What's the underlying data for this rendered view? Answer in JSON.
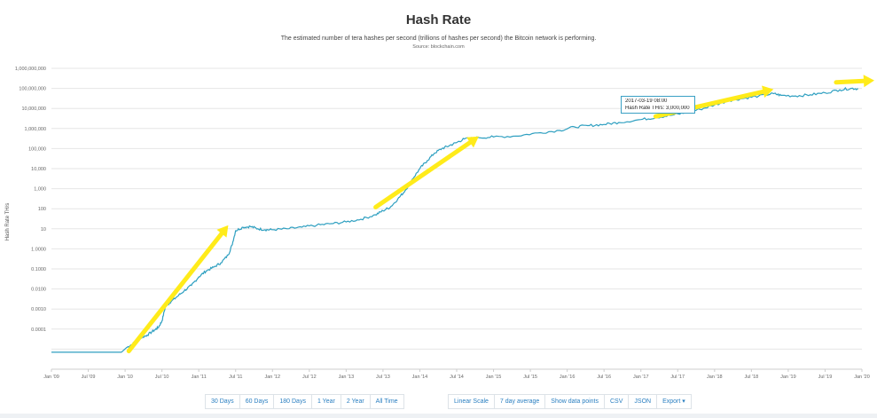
{
  "header": {
    "title": "Hash Rate",
    "subtitle": "The estimated number of tera hashes per second (trillions of hashes per second) the Bitcoin network is performing.",
    "source": "Source: blockchain.com"
  },
  "chart_data": {
    "type": "line",
    "title": "Hash Rate",
    "ylabel": "Hash Rate TH/s",
    "xlabel": "",
    "yscale": "log",
    "ylim": [
      1e-06,
      1000000000
    ],
    "y_tick_labels": [
      "0.0001",
      "0.0010",
      "0.0100",
      "0.1000",
      "1.0000",
      "10",
      "100",
      "1,000",
      "10,000",
      "100,000",
      "1,000,000",
      "10,000,000",
      "100,000,000",
      "1,000,000,000"
    ],
    "y_tick_values": [
      1e-05,
      0.0001,
      0.001,
      0.01,
      0.1,
      1,
      10,
      100,
      1000,
      10000,
      100000,
      1000000,
      10000000,
      100000000,
      1000000000
    ],
    "y_tick_labels_full": [
      "",
      "0.0001",
      "0.0010",
      "0.0100",
      "0.1000",
      "1.0000",
      "10",
      "100",
      "1,000",
      "10,000",
      "100,000",
      "1,000,000",
      "10,000,000",
      "100,000,000",
      "1,000,000,000"
    ],
    "x_tick_labels": [
      "Jan '09",
      "Jul '09",
      "Jan '10",
      "Jul '10",
      "Jan '11",
      "Jul '11",
      "Jan '12",
      "Jul '12",
      "Jan '13",
      "Jul '13",
      "Jan '14",
      "Jul '14",
      "Jan '15",
      "Jul '15",
      "Jan '16",
      "Jul '16",
      "Jan '17",
      "Jul '17",
      "Jan '18",
      "Jul '18",
      "Jan '19",
      "Jul '19",
      "Jan '20"
    ],
    "xlim": [
      2009.0,
      2020.0
    ],
    "grid": true,
    "series_color": "#2e9fc0",
    "series": [
      {
        "x": [
          2009.0,
          2009.5,
          2009.95,
          2010.02,
          2010.1,
          2010.2,
          2010.3,
          2010.4,
          2010.45,
          2010.5,
          2010.55,
          2010.6,
          2010.7,
          2010.8,
          2010.9,
          2011.0,
          2011.1,
          2011.2,
          2011.3,
          2011.4,
          2011.45,
          2011.5,
          2011.6,
          2011.7,
          2011.8,
          2011.9,
          2012.0,
          2012.2,
          2012.4,
          2012.6,
          2012.8,
          2013.0,
          2013.2,
          2013.4,
          2013.5,
          2013.6,
          2013.7,
          2013.8,
          2013.9,
          2014.0,
          2014.1,
          2014.2,
          2014.3,
          2014.4,
          2014.5,
          2014.6,
          2014.8,
          2015.0,
          2015.3,
          2015.6,
          2015.9,
          2016.1,
          2016.3,
          2016.5,
          2016.7,
          2017.0,
          2017.2,
          2017.4,
          2017.6,
          2017.8,
          2018.0,
          2018.2,
          2018.4,
          2018.6,
          2018.8,
          2018.9,
          2019.1,
          2019.3,
          2019.5,
          2019.7,
          2019.85,
          2019.95
        ],
        "y": [
          7e-06,
          7e-06,
          7e-06,
          1.2e-05,
          1.8e-05,
          3.5e-05,
          5e-05,
          9e-05,
          0.00012,
          0.00025,
          0.0015,
          0.002,
          0.004,
          0.008,
          0.015,
          0.04,
          0.08,
          0.12,
          0.2,
          0.5,
          1.5,
          8,
          12,
          13,
          10,
          9,
          9,
          10,
          12,
          15,
          18,
          22,
          30,
          50,
          80,
          120,
          300,
          800,
          3000,
          10000,
          25000,
          60000,
          100000,
          140000,
          200000,
          300000,
          350000,
          380000,
          420000,
          600000,
          800000,
          1200000,
          1400000,
          1600000,
          2000000,
          2800000,
          3500000,
          4500000,
          6000000,
          9000000,
          15000000,
          25000000,
          32000000,
          42000000,
          55000000,
          45000000,
          42000000,
          48000000,
          60000000,
          85000000,
          100000000,
          95000000
        ]
      }
    ],
    "tooltip": {
      "date": "2017-03-19 08:00",
      "label": "Hash Rate TH/s: 3,000,000"
    },
    "annotations": {
      "arrow_color": "#ffeb1a",
      "arrows": [
        {
          "from": [
            2010.05,
            8e-06
          ],
          "to": [
            2011.4,
            15
          ]
        },
        {
          "from": [
            2013.4,
            120
          ],
          "to": [
            2014.8,
            400000
          ]
        },
        {
          "from": [
            2017.2,
            4000000
          ],
          "to": [
            2018.8,
            90000000
          ]
        },
        {
          "from": [
            2019.65,
            200000000
          ],
          "to": [
            2020.9,
            250000000
          ]
        }
      ]
    }
  },
  "toolbar_left": [
    "30 Days",
    "60 Days",
    "180 Days",
    "1 Year",
    "2 Year",
    "All Time"
  ],
  "toolbar_right": [
    "Linear Scale",
    "7 day average",
    "Show data points",
    "CSV",
    "JSON",
    "Export ▾"
  ]
}
